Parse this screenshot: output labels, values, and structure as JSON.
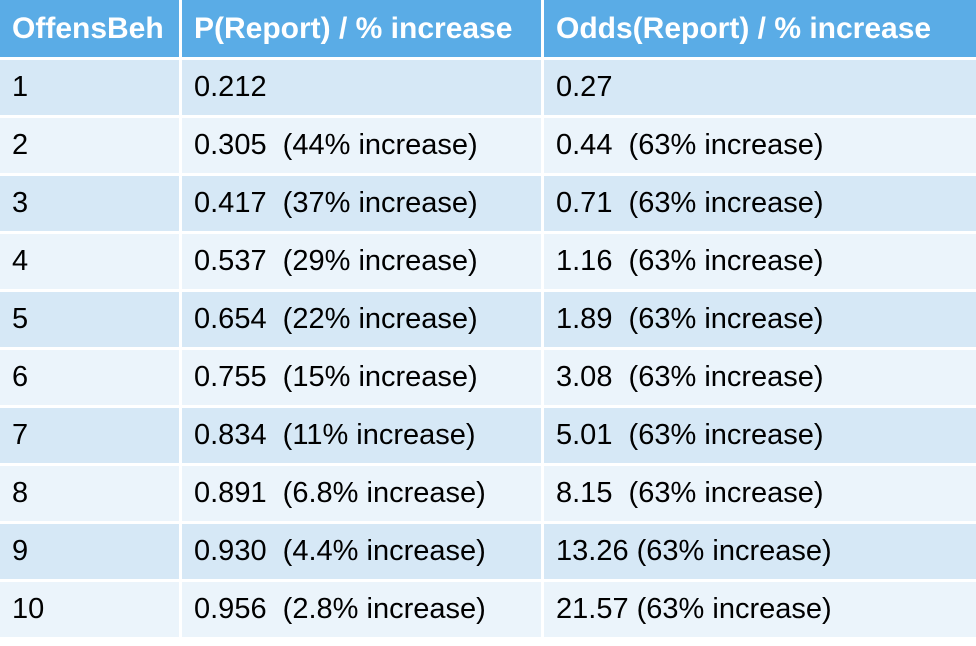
{
  "table": {
    "headers": [
      "OffensBeh",
      "P(Report) / % increase",
      "Odds(Report) / % increase"
    ],
    "rows": [
      [
        "1",
        "0.212",
        "0.27"
      ],
      [
        "2",
        "0.305  (44% increase)",
        "0.44  (63% increase)"
      ],
      [
        "3",
        "0.417  (37% increase)",
        "0.71  (63% increase)"
      ],
      [
        "4",
        "0.537  (29% increase)",
        "1.16  (63% increase)"
      ],
      [
        "5",
        "0.654  (22% increase)",
        "1.89  (63% increase)"
      ],
      [
        "6",
        "0.755  (15% increase)",
        "3.08  (63% increase)"
      ],
      [
        "7",
        "0.834  (11% increase)",
        "5.01  (63% increase)"
      ],
      [
        "8",
        "0.891  (6.8% increase)",
        "8.15  (63% increase)"
      ],
      [
        "9",
        "0.930  (4.4% increase)",
        "13.26 (63% increase)"
      ],
      [
        "10",
        "0.956  (2.8% increase)",
        "21.57 (63% increase)"
      ]
    ]
  },
  "colors": {
    "header_bg": "#5aace6",
    "row_odd_bg": "#d6e8f6",
    "row_even_bg": "#ebf4fb",
    "header_text": "#ffffff"
  }
}
